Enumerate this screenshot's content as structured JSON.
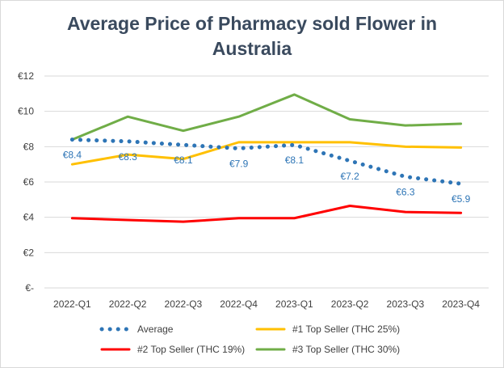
{
  "chart_data": {
    "type": "line",
    "title_line1": "Average Price of Pharmacy sold Flower in",
    "title_line2": "Australia",
    "categories": [
      "2022-Q1",
      "2022-Q2",
      "2022-Q3",
      "2022-Q4",
      "2023-Q1",
      "2023-Q2",
      "2023-Q3",
      "2023-Q4"
    ],
    "y_ticks": [
      "€-",
      "€2",
      "€4",
      "€6",
      "€8",
      "€10",
      "€12"
    ],
    "ylim": [
      0,
      12
    ],
    "grid": true,
    "legend_position": "bottom",
    "series": [
      {
        "name": "Average",
        "style": "dotted",
        "color": "#2e75b6",
        "values": [
          8.4,
          8.3,
          8.1,
          7.9,
          8.1,
          7.2,
          6.3,
          5.9
        ],
        "labels": [
          "€8.4",
          "€8.3",
          "€8.1",
          "€7.9",
          "€8.1",
          "€7.2",
          "€6.3",
          "€5.9"
        ]
      },
      {
        "name": "#1 Top Seller (THC 25%)",
        "style": "solid",
        "color": "#ffc000",
        "values": [
          7.0,
          7.55,
          7.3,
          8.25,
          8.25,
          8.25,
          8.0,
          7.95
        ]
      },
      {
        "name": "#2 Top Seller (THC 19%)",
        "style": "solid",
        "color": "#ff0000",
        "values": [
          3.95,
          3.85,
          3.75,
          3.95,
          3.95,
          4.65,
          4.3,
          4.25
        ]
      },
      {
        "name": "#3 Top Seller (THC 30%)",
        "style": "solid",
        "color": "#70ad47",
        "values": [
          8.4,
          9.7,
          8.9,
          9.7,
          10.95,
          9.55,
          9.2,
          9.3
        ]
      }
    ]
  }
}
